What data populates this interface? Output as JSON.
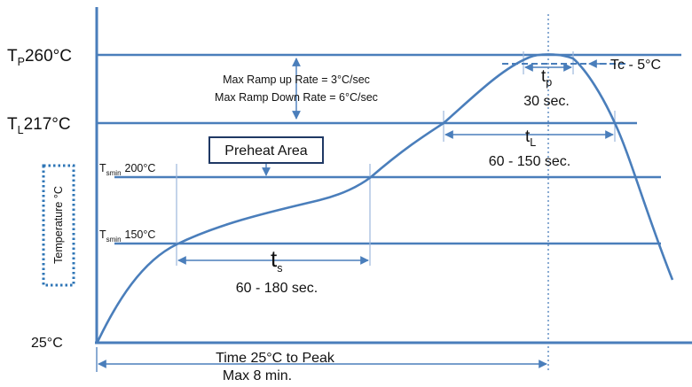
{
  "labels": {
    "tp_prefix": "T",
    "tp_sub": "P",
    "tp_value": "260°C",
    "tl_prefix": "T",
    "tl_sub": "L",
    "tl_value": "217°C",
    "tsmax_prefix": "T",
    "tsmax_sub": "smin",
    "tsmax_value": "200°C",
    "tsmin_prefix": "T",
    "tsmin_sub": "smin",
    "tsmin_value": "150°C",
    "start_temp": "25°C",
    "y_axis": "Temperature °C",
    "ramp_up": "Max Ramp up Rate = 3°C/sec",
    "ramp_down": "Max Ramp Down Rate = 6°C/sec",
    "preheat": "Preheat Area",
    "tc": "Tc - 5°C",
    "tp_symbol": "t",
    "tp_symbol_sub": "p",
    "tp_time": "30 sec.",
    "tl_symbol": "t",
    "tl_symbol_sub": "L",
    "tl_time": "60 - 150 sec.",
    "ts_symbol": "t",
    "ts_symbol_sub": "s",
    "ts_time": "60 - 180 sec.",
    "time_to_peak": "Time 25°C to Peak",
    "max_time": "Max 8 min."
  },
  "colors": {
    "line": "#4a7ebb",
    "box_border": "#1f3864",
    "dotted_border": "#2e75b6"
  }
}
